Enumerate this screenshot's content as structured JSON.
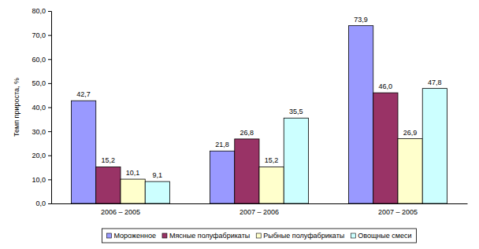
{
  "chart_data": {
    "type": "bar",
    "y_label": "Темп прироста, %",
    "categories": [
      "2006 – 2005",
      "2007 – 2006",
      "2007 – 2005"
    ],
    "series": [
      {
        "name": "Мороженное",
        "color": "#9999ff",
        "values": [
          42.7,
          21.8,
          73.9
        ],
        "value_labels": [
          "42,7",
          "21,8",
          "73,9"
        ]
      },
      {
        "name": "Мясные полуфабрикаты",
        "color": "#993366",
        "values": [
          15.2,
          26.8,
          46.0
        ],
        "value_labels": [
          "15,2",
          "26,8",
          "46,0"
        ]
      },
      {
        "name": "Рыбные полуфабрикаты",
        "color": "#ffffcc",
        "values": [
          10.1,
          15.2,
          26.9
        ],
        "value_labels": [
          "10,1",
          "15,2",
          "26,9"
        ]
      },
      {
        "name": "Овощные смеси",
        "color": "#ccffff",
        "values": [
          9.1,
          35.5,
          47.8
        ],
        "value_labels": [
          "9,1",
          "35,5",
          "47,8"
        ]
      }
    ],
    "ylim": [
      0,
      80
    ],
    "yticks": [
      {
        "value": 0,
        "label": "0,0"
      },
      {
        "value": 10,
        "label": "10,0"
      },
      {
        "value": 20,
        "label": "20,0"
      },
      {
        "value": 30,
        "label": "30,0"
      },
      {
        "value": 40,
        "label": "40,0"
      },
      {
        "value": 50,
        "label": "50,0"
      },
      {
        "value": 60,
        "label": "60,0"
      },
      {
        "value": 70,
        "label": "70,0"
      },
      {
        "value": 80,
        "label": "80,0"
      }
    ],
    "grid": false,
    "legend": "bottom",
    "data_labels": true
  }
}
